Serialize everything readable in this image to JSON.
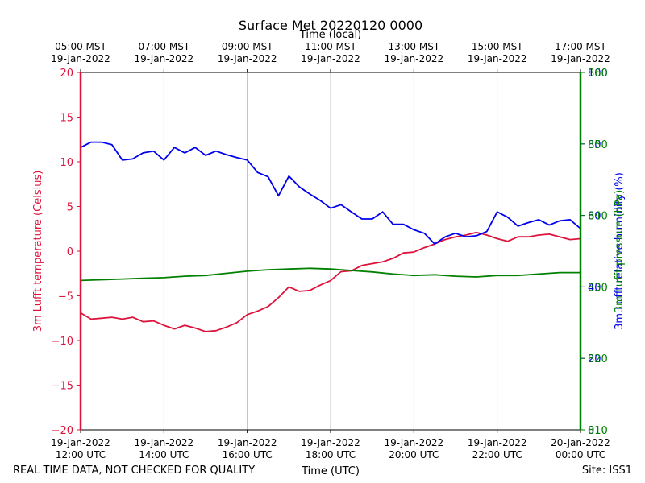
{
  "chart_data": {
    "type": "line",
    "title": "Surface Met 20220120 0000",
    "top_axis_label": "Time (local)",
    "bottom_axis_label": "Time (UTC)",
    "footer_left": "REAL TIME DATA, NOT CHECKED FOR QUALITY",
    "footer_right": "Site: ISS1",
    "x_range_utc_hours": [
      12,
      24
    ],
    "bottom_ticks": [
      {
        "hour": 12,
        "line1": "19-Jan-2022",
        "line2": "12:00 UTC"
      },
      {
        "hour": 14,
        "line1": "19-Jan-2022",
        "line2": "14:00 UTC"
      },
      {
        "hour": 16,
        "line1": "19-Jan-2022",
        "line2": "16:00 UTC"
      },
      {
        "hour": 18,
        "line1": "19-Jan-2022",
        "line2": "18:00 UTC"
      },
      {
        "hour": 20,
        "line1": "19-Jan-2022",
        "line2": "20:00 UTC"
      },
      {
        "hour": 22,
        "line1": "19-Jan-2022",
        "line2": "22:00 UTC"
      },
      {
        "hour": 24,
        "line1": "20-Jan-2022",
        "line2": "00:00 UTC"
      }
    ],
    "top_ticks": [
      {
        "hour": 12,
        "line1": "05:00 MST",
        "line2": "19-Jan-2022"
      },
      {
        "hour": 14,
        "line1": "07:00 MST",
        "line2": "19-Jan-2022"
      },
      {
        "hour": 16,
        "line1": "09:00 MST",
        "line2": "19-Jan-2022"
      },
      {
        "hour": 18,
        "line1": "11:00 MST",
        "line2": "19-Jan-2022"
      },
      {
        "hour": 20,
        "line1": "13:00 MST",
        "line2": "19-Jan-2022"
      },
      {
        "hour": 22,
        "line1": "15:00 MST",
        "line2": "19-Jan-2022"
      },
      {
        "hour": 24,
        "line1": "17:00 MST",
        "line2": "19-Jan-2022"
      }
    ],
    "grid_x": true,
    "left_axis": {
      "label": "3m Lufft temperature (Celsius)",
      "range": [
        -20,
        20
      ],
      "ticks": [
        -20,
        -15,
        -10,
        -5,
        0,
        5,
        10,
        15,
        20
      ],
      "color": "#dc143c"
    },
    "right_axes": [
      {
        "label": "3m Lufft relative humidity (%)",
        "range": [
          0,
          100
        ],
        "ticks": [
          0,
          20,
          40,
          60,
          80,
          100
        ],
        "color": "#0000ee"
      },
      {
        "label": "3m Lufft pressure (hPa)",
        "range": [
          810,
          860
        ],
        "ticks": [
          810,
          820,
          830,
          840,
          850,
          860
        ],
        "color": "#008000"
      }
    ],
    "series": [
      {
        "axis": "left",
        "color": "#dc143c",
        "x": [
          12.0,
          12.25,
          12.5,
          12.75,
          13.0,
          13.25,
          13.5,
          13.75,
          14.0,
          14.25,
          14.5,
          14.75,
          15.0,
          15.25,
          15.5,
          15.75,
          16.0,
          16.25,
          16.5,
          16.75,
          17.0,
          17.25,
          17.5,
          17.75,
          18.0,
          18.25,
          18.5,
          18.75,
          19.0,
          19.25,
          19.5,
          19.75,
          20.0,
          20.25,
          20.5,
          20.75,
          21.0,
          21.25,
          21.5,
          21.75,
          22.0,
          22.25,
          22.5,
          22.75,
          23.0,
          23.25,
          23.5,
          23.75,
          24.0
        ],
        "y": [
          -6.9,
          -7.6,
          -7.5,
          -7.4,
          -7.6,
          -7.4,
          -7.9,
          -7.8,
          -8.3,
          -8.7,
          -8.3,
          -8.6,
          -9.0,
          -8.9,
          -8.5,
          -8.0,
          -7.1,
          -6.7,
          -6.2,
          -5.2,
          -4.0,
          -4.5,
          -4.4,
          -3.8,
          -3.3,
          -2.3,
          -2.2,
          -1.6,
          -1.4,
          -1.2,
          -0.8,
          -0.2,
          -0.1,
          0.4,
          0.8,
          1.3,
          1.6,
          1.8,
          2.1,
          1.8,
          1.4,
          1.1,
          1.6,
          1.6,
          1.8,
          1.9,
          1.6,
          1.3,
          1.4
        ]
      },
      {
        "axis": "right0",
        "color": "#0000ee",
        "x": [
          12.0,
          12.25,
          12.5,
          12.75,
          13.0,
          13.25,
          13.5,
          13.75,
          14.0,
          14.25,
          14.5,
          14.75,
          15.0,
          15.25,
          15.5,
          15.75,
          16.0,
          16.25,
          16.5,
          16.75,
          17.0,
          17.25,
          17.5,
          17.75,
          18.0,
          18.25,
          18.5,
          18.75,
          19.0,
          19.25,
          19.5,
          19.75,
          20.0,
          20.25,
          20.5,
          20.75,
          21.0,
          21.25,
          21.5,
          21.75,
          22.0,
          22.25,
          22.5,
          22.75,
          23.0,
          23.25,
          23.5,
          23.75,
          24.0
        ],
        "y": [
          79.0,
          80.5,
          80.5,
          79.8,
          75.5,
          75.8,
          77.5,
          78.0,
          75.5,
          79.0,
          77.5,
          79.0,
          76.8,
          78.0,
          77.0,
          76.2,
          75.5,
          72.0,
          70.8,
          65.5,
          71.0,
          68.0,
          66.0,
          64.2,
          62.0,
          63.0,
          61.0,
          59.0,
          59.0,
          61.0,
          57.5,
          57.5,
          56.0,
          55.0,
          52.0,
          54.0,
          55.0,
          54.0,
          54.3,
          55.5,
          61.0,
          59.5,
          57.0,
          58.0,
          58.8,
          57.3,
          58.5,
          58.8,
          56.3
        ]
      },
      {
        "axis": "right1",
        "color": "#008000",
        "x": [
          12.0,
          12.5,
          13.0,
          13.5,
          14.0,
          14.5,
          15.0,
          15.5,
          16.0,
          16.5,
          17.0,
          17.5,
          18.0,
          18.5,
          19.0,
          19.5,
          20.0,
          20.5,
          21.0,
          21.5,
          22.0,
          22.5,
          23.0,
          23.5,
          24.0
        ],
        "y": [
          830.9,
          831.0,
          831.1,
          831.2,
          831.3,
          831.5,
          831.6,
          831.9,
          832.2,
          832.4,
          832.5,
          832.6,
          832.5,
          832.3,
          832.1,
          831.8,
          831.6,
          831.7,
          831.5,
          831.4,
          831.6,
          831.6,
          831.8,
          832.0,
          832.0
        ]
      }
    ]
  }
}
